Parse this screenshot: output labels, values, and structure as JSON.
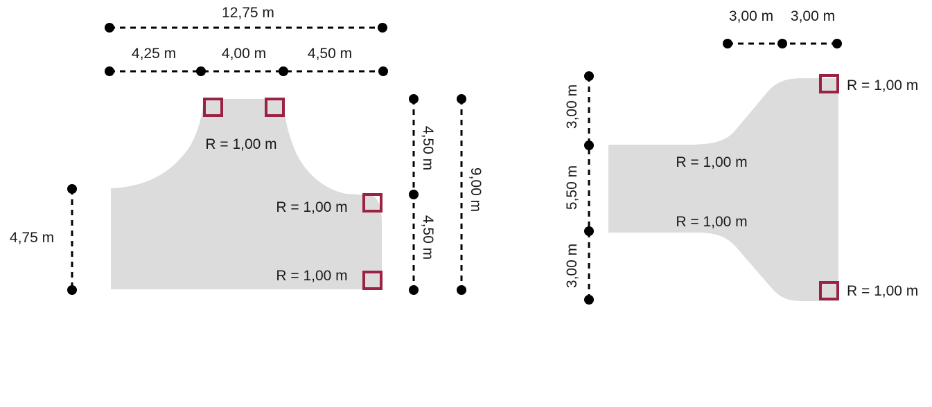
{
  "left_figure": {
    "total_width": "12,75 m",
    "segment_1": "4,25 m",
    "segment_2": "4,00 m",
    "segment_3": "4,50 m",
    "left_height": "4,75 m",
    "right_upper": "4,50 m",
    "right_lower": "4,50 m",
    "total_height": "9,00 m",
    "radius_top": "R = 1,00 m",
    "radius_right_upper": "R = 1,00 m",
    "radius_right_lower": "R = 1,00 m"
  },
  "right_figure": {
    "top_left": "3,00 m",
    "top_right": "3,00 m",
    "height_top": "3,00 m",
    "height_middle": "5,50 m",
    "height_bottom": "3,00 m",
    "radius_upper_right": "R = 1,00 m",
    "radius_middle_upper": "R = 1,00 m",
    "radius_middle_lower": "R = 1,00 m",
    "radius_lower_right": "R = 1,00 m"
  },
  "colors": {
    "shape_fill": "#dcdcdc",
    "marker": "#9b2242",
    "line": "#000000"
  }
}
